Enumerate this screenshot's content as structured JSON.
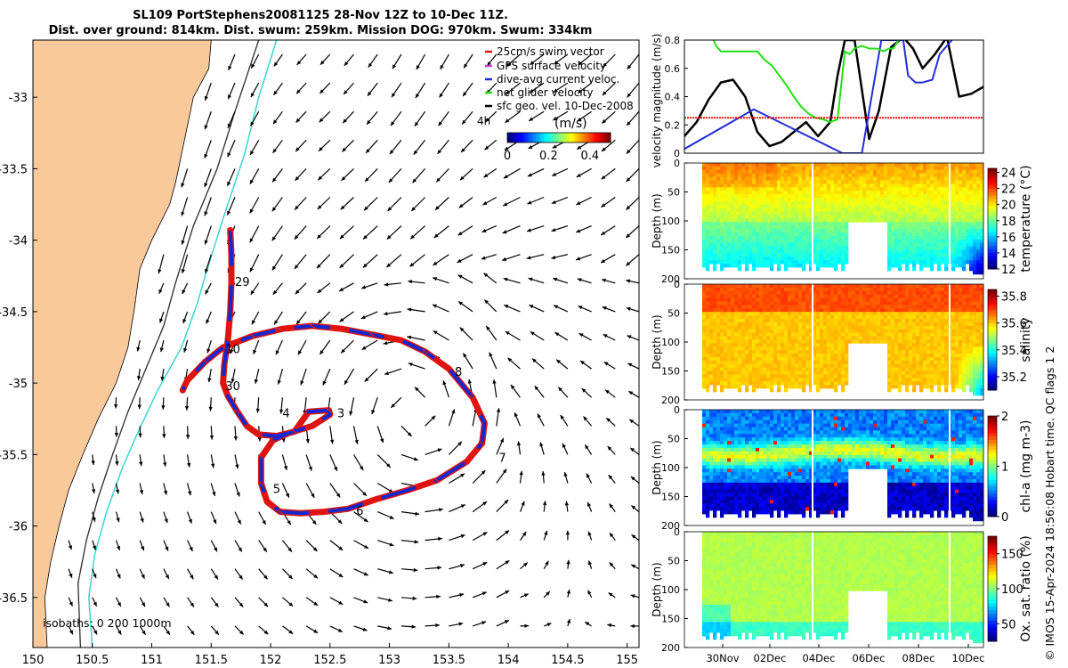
{
  "title_line1": "SL109 PortStephens20081125 28-Nov 12Z to 10-Dec 11Z.",
  "title_line2": "Dist. over ground: 814km. Dist. swum: 259km. Mission DOG: 970km. Swum: 334km",
  "credit": "© IMOS 15-Apr-2024 18:56:08 Hobart time. QC flags 1  2",
  "colors": {
    "land": "#f8c99b",
    "track_red": "#e0140f",
    "track_blue": "#1428d0",
    "isobath_200": "#2a2a2a",
    "isobath_1000": "#3ad4d4",
    "glider_velocity": "#22e014",
    "swim_vector": "#e0140f",
    "current_velocity": "#1f2ed8",
    "geo_velocity": "#000000"
  },
  "chart_data": [
    {
      "type": "scatter",
      "title": "map",
      "x_ticks": [
        "150",
        "150.5",
        "151",
        "151.5",
        "152",
        "152.5",
        "153",
        "153.5",
        "154",
        "154.5",
        "155"
      ],
      "y_ticks": [
        "-33",
        "-33.5",
        "-34",
        "-34.5",
        "-35",
        "-35.5",
        "-36",
        "-36.5"
      ],
      "xlim": [
        150,
        155.1
      ],
      "ylim": [
        -36.85,
        -32.6
      ],
      "legend": {
        "placement": "top-right",
        "items": [
          {
            "label": "25cm/s swim vector",
            "color": "#e0140f"
          },
          {
            "label": "GPS surface velocity",
            "color": "#c83cc8"
          },
          {
            "label": "dive-avg current veloc.",
            "color": "#1f2ed8"
          },
          {
            "label": "net glider velocity",
            "color": "#22e014"
          },
          {
            "label": "sfc geo. vel. 10-Dec-2008",
            "color": "#000000"
          }
        ],
        "extra_label": "4h"
      },
      "colorbar": {
        "label": "(m/s)",
        "ticks": [
          "0",
          "0.2",
          "0.4"
        ],
        "range": [
          0,
          0.5
        ]
      },
      "isobath_label": "isobaths: 0   200  1000m",
      "track": [
        [
          151.66,
          -33.93
        ],
        [
          151.67,
          -34.1
        ],
        [
          151.67,
          -34.3
        ],
        [
          151.66,
          -34.5
        ],
        [
          151.64,
          -34.7
        ],
        [
          151.61,
          -34.87
        ],
        [
          151.6,
          -35.0
        ],
        [
          151.64,
          -35.09
        ],
        [
          151.72,
          -35.2
        ],
        [
          151.8,
          -35.3
        ],
        [
          151.9,
          -35.36
        ],
        [
          152.05,
          -35.37
        ],
        [
          152.2,
          -35.34
        ],
        [
          152.32,
          -35.2
        ],
        [
          152.49,
          -35.19
        ],
        [
          152.5,
          -35.22
        ],
        [
          152.35,
          -35.3
        ],
        [
          152.15,
          -35.35
        ],
        [
          152.02,
          -35.4
        ],
        [
          151.92,
          -35.52
        ],
        [
          151.92,
          -35.7
        ],
        [
          151.97,
          -35.83
        ],
        [
          152.08,
          -35.9
        ],
        [
          152.25,
          -35.91
        ],
        [
          152.45,
          -35.9
        ],
        [
          152.65,
          -35.88
        ],
        [
          152.9,
          -35.81
        ],
        [
          153.15,
          -35.75
        ],
        [
          153.4,
          -35.68
        ],
        [
          153.65,
          -35.55
        ],
        [
          153.78,
          -35.42
        ],
        [
          153.8,
          -35.28
        ],
        [
          153.7,
          -35.1
        ],
        [
          153.5,
          -34.9
        ],
        [
          153.3,
          -34.78
        ],
        [
          153.1,
          -34.7
        ],
        [
          152.85,
          -34.66
        ],
        [
          152.6,
          -34.62
        ],
        [
          152.35,
          -34.6
        ],
        [
          152.1,
          -34.62
        ],
        [
          151.85,
          -34.67
        ],
        [
          151.6,
          -34.75
        ],
        [
          151.45,
          -34.85
        ],
        [
          151.3,
          -34.98
        ],
        [
          151.26,
          -35.05
        ]
      ],
      "day_labels": [
        {
          "label": "29",
          "lon": 151.7,
          "lat": -34.32
        },
        {
          "label": "10",
          "lon": 151.62,
          "lat": -34.79
        },
        {
          "label": "30",
          "lon": 151.62,
          "lat": -35.05
        },
        {
          "label": "4",
          "lon": 152.1,
          "lat": -35.24
        },
        {
          "label": "3",
          "lon": 152.56,
          "lat": -35.24
        },
        {
          "label": "5",
          "lon": 152.02,
          "lat": -35.77
        },
        {
          "label": "6",
          "lon": 152.72,
          "lat": -35.92
        },
        {
          "label": "7",
          "lon": 153.92,
          "lat": -35.55
        },
        {
          "label": "8",
          "lon": 153.55,
          "lat": -34.95
        }
      ]
    },
    {
      "type": "line",
      "ylabel": "velocity magnitude (m/s)",
      "y_ticks": [
        "0",
        "0.2",
        "0.4",
        "0.6",
        "0.8"
      ],
      "ylim": [
        0,
        0.8
      ],
      "xlim": [
        0,
        12.3
      ],
      "series": [
        {
          "color": "#000000",
          "x": [
            0,
            0.5,
            1.0,
            1.5,
            2.0,
            2.5,
            3.0,
            3.5,
            4.0,
            4.5,
            5.0,
            5.5,
            6.0,
            6.3,
            6.6,
            7.0,
            7.3,
            7.6,
            8.0,
            8.5,
            9.0,
            9.4,
            9.8,
            10.3,
            10.8,
            11.3,
            11.8,
            12.3
          ],
          "y": [
            0.12,
            0.22,
            0.38,
            0.5,
            0.52,
            0.4,
            0.15,
            0.05,
            0.08,
            0.15,
            0.22,
            0.12,
            0.22,
            0.55,
            0.8,
            0.8,
            0.45,
            0.1,
            0.3,
            0.75,
            0.82,
            0.74,
            0.6,
            0.7,
            0.82,
            0.4,
            0.42,
            0.47
          ]
        },
        {
          "color": "#1f2ed8",
          "x": [
            0,
            2.85,
            6.5,
            7.3,
            8.1,
            9.0,
            9.2,
            9.5,
            9.8,
            10.2,
            10.5,
            11.0
          ],
          "y": [
            0.03,
            0.31,
            0.0,
            0.0,
            0.8,
            0.8,
            0.55,
            0.5,
            0.5,
            0.52,
            0.7,
            0.8
          ]
        },
        {
          "color": "#22e014",
          "x": [
            1.2,
            1.3,
            1.5,
            1.7,
            3.0,
            3.3,
            3.6,
            3.9,
            4.2,
            4.5,
            4.8,
            5.1,
            5.4,
            5.7,
            6.0,
            6.3,
            6.6,
            6.8,
            7.0,
            7.3,
            7.6,
            7.9,
            8.2,
            8.4,
            8.6,
            8.8
          ],
          "y": [
            0.8,
            0.76,
            0.72,
            0.72,
            0.72,
            0.66,
            0.62,
            0.55,
            0.48,
            0.4,
            0.33,
            0.28,
            0.25,
            0.24,
            0.22,
            0.24,
            0.72,
            0.7,
            0.74,
            0.76,
            0.74,
            0.74,
            0.72,
            0.74,
            0.74,
            0.8
          ]
        },
        {
          "color": "#e0140f",
          "x": [
            0,
            12.3
          ],
          "y": [
            0.25,
            0.25
          ]
        }
      ]
    },
    {
      "type": "heatmap",
      "ylabel": "Depth (m)",
      "colorbar_label": "temperature (°C)",
      "colorbar_ticks": [
        "12",
        "14",
        "16",
        "18",
        "20",
        "22",
        "24"
      ],
      "clim": [
        12,
        24.5
      ],
      "y_ticks": [
        "0",
        "50",
        "100",
        "150",
        "200"
      ]
    },
    {
      "type": "heatmap",
      "ylabel": "Depth (m)",
      "colorbar_label": "salinity",
      "colorbar_ticks": [
        "35.2",
        "35.4",
        "35.6",
        "35.8"
      ],
      "clim": [
        35.1,
        35.85
      ],
      "y_ticks": [
        "0",
        "50",
        "100",
        "150",
        "200"
      ]
    },
    {
      "type": "heatmap",
      "ylabel": "Depth (m)",
      "colorbar_label": "chl-a (mg m-3)",
      "colorbar_ticks": [
        "0",
        "1",
        "2"
      ],
      "clim": [
        0,
        2
      ],
      "y_ticks": [
        "0",
        "50",
        "100",
        "150",
        "200"
      ]
    },
    {
      "type": "heatmap",
      "ylabel": "Depth (m)",
      "colorbar_label": "Ox. sat. ratio (%)",
      "colorbar_ticks": [
        "50",
        "100",
        "150"
      ],
      "clim": [
        25,
        175
      ],
      "y_ticks": [
        "0",
        "50",
        "100",
        "150",
        "200"
      ],
      "x_ticks": [
        "30Nov",
        "02Dec",
        "04Dec",
        "06Dec",
        "08Dec",
        "10Dec"
      ]
    }
  ]
}
